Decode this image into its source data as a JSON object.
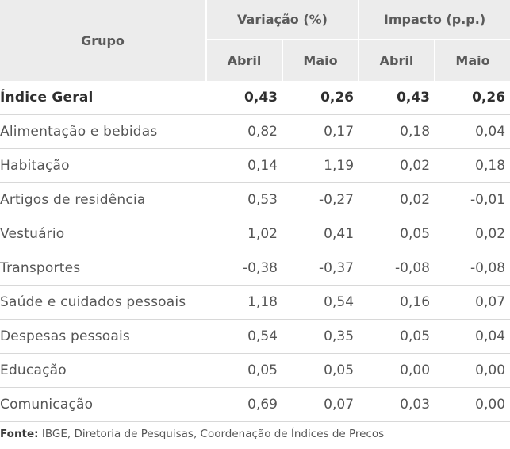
{
  "table": {
    "header": {
      "group_col": "Grupo",
      "variacao": "Variação (%)",
      "impacto": "Impacto (p.p.)",
      "sub": [
        "Abril",
        "Maio",
        "Abril",
        "Maio"
      ]
    },
    "rows": [
      {
        "label": "Índice Geral",
        "values": [
          "0,43",
          "0,26",
          "0,43",
          "0,26"
        ]
      },
      {
        "label": "Alimentação e bebidas",
        "values": [
          "0,82",
          "0,17",
          "0,18",
          "0,04"
        ]
      },
      {
        "label": "Habitação",
        "values": [
          "0,14",
          "1,19",
          "0,02",
          "0,18"
        ]
      },
      {
        "label": "Artigos de residência",
        "values": [
          "0,53",
          "-0,27",
          "0,02",
          "-0,01"
        ]
      },
      {
        "label": "Vestuário",
        "values": [
          "1,02",
          "0,41",
          "0,05",
          "0,02"
        ]
      },
      {
        "label": "Transportes",
        "values": [
          "-0,38",
          "-0,37",
          "-0,08",
          "-0,08"
        ]
      },
      {
        "label": "Saúde e cuidados pessoais",
        "values": [
          "1,18",
          "0,54",
          "0,16",
          "0,07"
        ]
      },
      {
        "label": "Despesas pessoais",
        "values": [
          "0,54",
          "0,35",
          "0,05",
          "0,04"
        ]
      },
      {
        "label": "Educação",
        "values": [
          "0,05",
          "0,05",
          "0,00",
          "0,00"
        ]
      },
      {
        "label": "Comunicação",
        "values": [
          "0,69",
          "0,07",
          "0,03",
          "0,00"
        ]
      }
    ]
  },
  "source": {
    "label": "Fonte:",
    "text": " IBGE, Diretoria de Pesquisas, Coordenação de Índices de Preços"
  }
}
